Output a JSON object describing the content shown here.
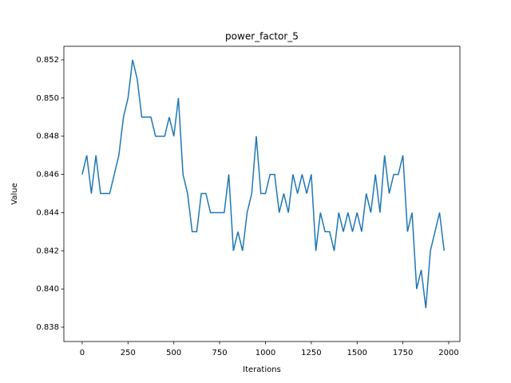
{
  "chart_data": {
    "type": "line",
    "title": "power_factor_5",
    "x_label": "Iterations",
    "y_label": "Value",
    "x": [
      0,
      25,
      50,
      75,
      100,
      125,
      150,
      175,
      200,
      225,
      250,
      275,
      300,
      325,
      350,
      375,
      400,
      425,
      450,
      475,
      500,
      525,
      550,
      575,
      600,
      625,
      650,
      675,
      700,
      725,
      750,
      775,
      800,
      825,
      850,
      875,
      900,
      925,
      950,
      975,
      1000,
      1025,
      1050,
      1075,
      1100,
      1125,
      1150,
      1175,
      1200,
      1225,
      1250,
      1275,
      1300,
      1325,
      1350,
      1375,
      1400,
      1425,
      1450,
      1475,
      1500,
      1525,
      1550,
      1575,
      1600,
      1625,
      1650,
      1675,
      1700,
      1725,
      1750,
      1775,
      1800,
      1825,
      1850,
      1875,
      1900,
      1925,
      1950,
      1975
    ],
    "series": [
      {
        "name": "power_factor_5",
        "color": "#1f77b4",
        "values": [
          0.846,
          0.847,
          0.845,
          0.847,
          0.845,
          0.845,
          0.845,
          0.846,
          0.847,
          0.849,
          0.85,
          0.852,
          0.851,
          0.849,
          0.849,
          0.849,
          0.848,
          0.848,
          0.848,
          0.849,
          0.848,
          0.85,
          0.846,
          0.845,
          0.843,
          0.843,
          0.845,
          0.845,
          0.844,
          0.844,
          0.844,
          0.844,
          0.846,
          0.842,
          0.843,
          0.842,
          0.844,
          0.845,
          0.848,
          0.845,
          0.845,
          0.846,
          0.846,
          0.844,
          0.845,
          0.844,
          0.846,
          0.845,
          0.846,
          0.845,
          0.846,
          0.842,
          0.844,
          0.843,
          0.843,
          0.842,
          0.844,
          0.843,
          0.844,
          0.843,
          0.844,
          0.843,
          0.845,
          0.844,
          0.846,
          0.844,
          0.847,
          0.845,
          0.846,
          0.846,
          0.847,
          0.843,
          0.844,
          0.84,
          0.841,
          0.839,
          0.842,
          0.843,
          0.844,
          0.842
        ]
      }
    ],
    "xlim": [
      -100,
      2061
    ],
    "ylim": [
      0.83725,
      0.85271
    ],
    "xticks": [
      0,
      250,
      500,
      750,
      1000,
      1250,
      1500,
      1750,
      2000
    ],
    "yticks": [
      0.838,
      {
        "value": 0.84,
        "label": "0.840"
      },
      0.842,
      0.844,
      0.846,
      0.848,
      {
        "value": 0.85,
        "label": "0.850"
      },
      0.852
    ]
  }
}
